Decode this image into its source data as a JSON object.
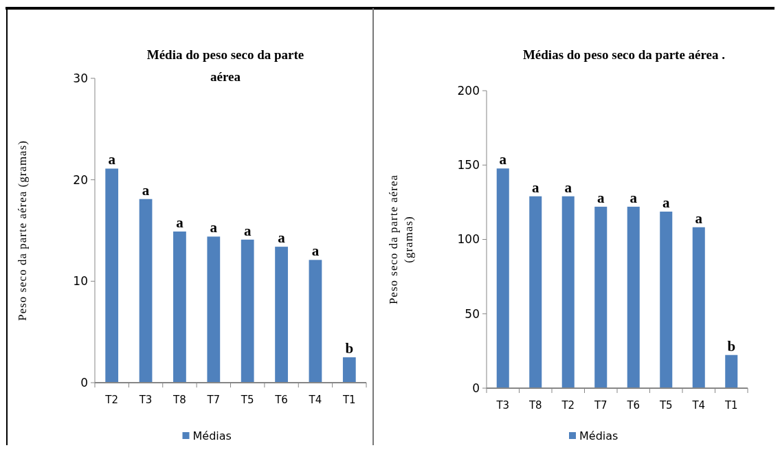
{
  "chart_data": [
    {
      "type": "bar",
      "title": "Média  do peso seco da parte aérea",
      "ylabel": "Peso seco da parte aérea (gramas)",
      "categories": [
        "T2",
        "T3",
        "T8",
        "T7",
        "T5",
        "T6",
        "T4",
        "T1"
      ],
      "series": [
        {
          "name": "Médias",
          "color": "#4f81bd",
          "values": [
            21.1,
            18.1,
            14.9,
            14.4,
            14.1,
            13.4,
            12.1,
            2.5
          ]
        }
      ],
      "ylim": [
        0,
        30
      ],
      "yticks": [
        0,
        10,
        20,
        30
      ],
      "grid": false,
      "legend": "bottom",
      "annotations": [
        {
          "text": "a",
          "x": "T2",
          "y": 21.1
        },
        {
          "text": "a",
          "x": "T3",
          "y": 18.1
        },
        {
          "text": "a",
          "x": "T8",
          "y": 14.9
        },
        {
          "text": "a",
          "x": "T7",
          "y": 14.4
        },
        {
          "text": "a",
          "x": "T5",
          "y": 14.1
        },
        {
          "text": "a",
          "x": "T6",
          "y": 13.4
        },
        {
          "text": "a",
          "x": "T4",
          "y": 12.1
        },
        {
          "text": "b",
          "x": "T1",
          "y": 2.5
        }
      ]
    },
    {
      "type": "bar",
      "title": "Médias do peso seco da parte aérea .",
      "ylabel": "Peso seco da parte aérea (gramas)",
      "categories": [
        "T3",
        "T8",
        "T2",
        "T7",
        "T6",
        "T5",
        "T4",
        "T1"
      ],
      "series": [
        {
          "name": "Médias",
          "color": "#4f81bd",
          "values": [
            147.7,
            129,
            129,
            122,
            122,
            118.7,
            108.2,
            22.3
          ]
        }
      ],
      "ylim": [
        0,
        200
      ],
      "yticks": [
        0,
        50,
        100,
        150,
        200
      ],
      "grid": false,
      "legend": "bottom",
      "annotations": [
        {
          "text": "a",
          "x": "T3",
          "y": 147.7
        },
        {
          "text": "a",
          "x": "T8",
          "y": 129
        },
        {
          "text": "a",
          "x": "T2",
          "y": 129
        },
        {
          "text": "a",
          "x": "T7",
          "y": 122
        },
        {
          "text": "a",
          "x": "T6",
          "y": 122
        },
        {
          "text": "a",
          "x": "T5",
          "y": 118.7
        },
        {
          "text": "a",
          "x": "T4",
          "y": 108.2
        },
        {
          "text": "b",
          "x": "T1",
          "y": 22.3
        }
      ]
    }
  ]
}
